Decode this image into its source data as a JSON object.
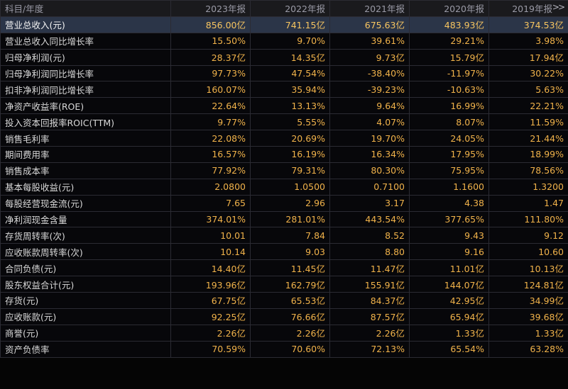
{
  "header": {
    "first": "科目/年度",
    "years": [
      "2023年报",
      "2022年报",
      "2021年报",
      "2020年报",
      "2019年报"
    ],
    "more_icon": "double-chevron-right-icon"
  },
  "rows": [
    {
      "label": "营业总收入(元)",
      "values": [
        "856.00亿",
        "741.15亿",
        "675.63亿",
        "483.93亿",
        "374.53亿"
      ]
    },
    {
      "label": "营业总收入同比增长率",
      "values": [
        "15.50%",
        "9.70%",
        "39.61%",
        "29.21%",
        "3.98%"
      ]
    },
    {
      "label": "归母净利润(元)",
      "values": [
        "28.37亿",
        "14.35亿",
        "9.73亿",
        "15.79亿",
        "17.94亿"
      ]
    },
    {
      "label": "归母净利润同比增长率",
      "values": [
        "97.73%",
        "47.54%",
        "-38.40%",
        "-11.97%",
        "30.22%"
      ]
    },
    {
      "label": "扣非净利润同比增长率",
      "values": [
        "160.07%",
        "35.94%",
        "-39.23%",
        "-10.63%",
        "5.63%"
      ]
    },
    {
      "label": "净资产收益率(ROE)",
      "values": [
        "22.64%",
        "13.13%",
        "9.64%",
        "16.99%",
        "22.21%"
      ]
    },
    {
      "label": "投入资本回报率ROIC(TTM)",
      "values": [
        "9.77%",
        "5.55%",
        "4.07%",
        "8.07%",
        "11.59%"
      ]
    },
    {
      "label": "销售毛利率",
      "values": [
        "22.08%",
        "20.69%",
        "19.70%",
        "24.05%",
        "21.44%"
      ]
    },
    {
      "label": "期间费用率",
      "values": [
        "16.57%",
        "16.19%",
        "16.34%",
        "17.95%",
        "18.99%"
      ]
    },
    {
      "label": "销售成本率",
      "values": [
        "77.92%",
        "79.31%",
        "80.30%",
        "75.95%",
        "78.56%"
      ]
    },
    {
      "label": "基本每股收益(元)",
      "values": [
        "2.0800",
        "1.0500",
        "0.7100",
        "1.1600",
        "1.3200"
      ]
    },
    {
      "label": "每股经营现金流(元)",
      "values": [
        "7.65",
        "2.96",
        "3.17",
        "4.38",
        "1.47"
      ]
    },
    {
      "label": "净利润现金含量",
      "values": [
        "374.01%",
        "281.01%",
        "443.54%",
        "377.65%",
        "111.80%"
      ]
    },
    {
      "label": "存货周转率(次)",
      "values": [
        "10.01",
        "7.84",
        "8.52",
        "9.43",
        "9.12"
      ]
    },
    {
      "label": "应收账款周转率(次)",
      "values": [
        "10.14",
        "9.03",
        "8.80",
        "9.16",
        "10.60"
      ]
    },
    {
      "label": "合同负债(元)",
      "values": [
        "14.40亿",
        "11.45亿",
        "11.47亿",
        "11.01亿",
        "10.13亿"
      ]
    },
    {
      "label": "股东权益合计(元)",
      "values": [
        "193.96亿",
        "162.79亿",
        "155.91亿",
        "144.07亿",
        "124.81亿"
      ]
    },
    {
      "label": "存货(元)",
      "values": [
        "67.75亿",
        "65.53亿",
        "84.37亿",
        "42.95亿",
        "34.99亿"
      ]
    },
    {
      "label": "应收账款(元)",
      "values": [
        "92.25亿",
        "76.66亿",
        "87.57亿",
        "65.94亿",
        "39.68亿"
      ]
    },
    {
      "label": "商誉(元)",
      "values": [
        "2.26亿",
        "2.26亿",
        "2.26亿",
        "1.33亿",
        "1.33亿"
      ]
    },
    {
      "label": "资产负债率",
      "values": [
        "70.59%",
        "70.60%",
        "72.13%",
        "65.54%",
        "63.28%"
      ]
    }
  ]
}
